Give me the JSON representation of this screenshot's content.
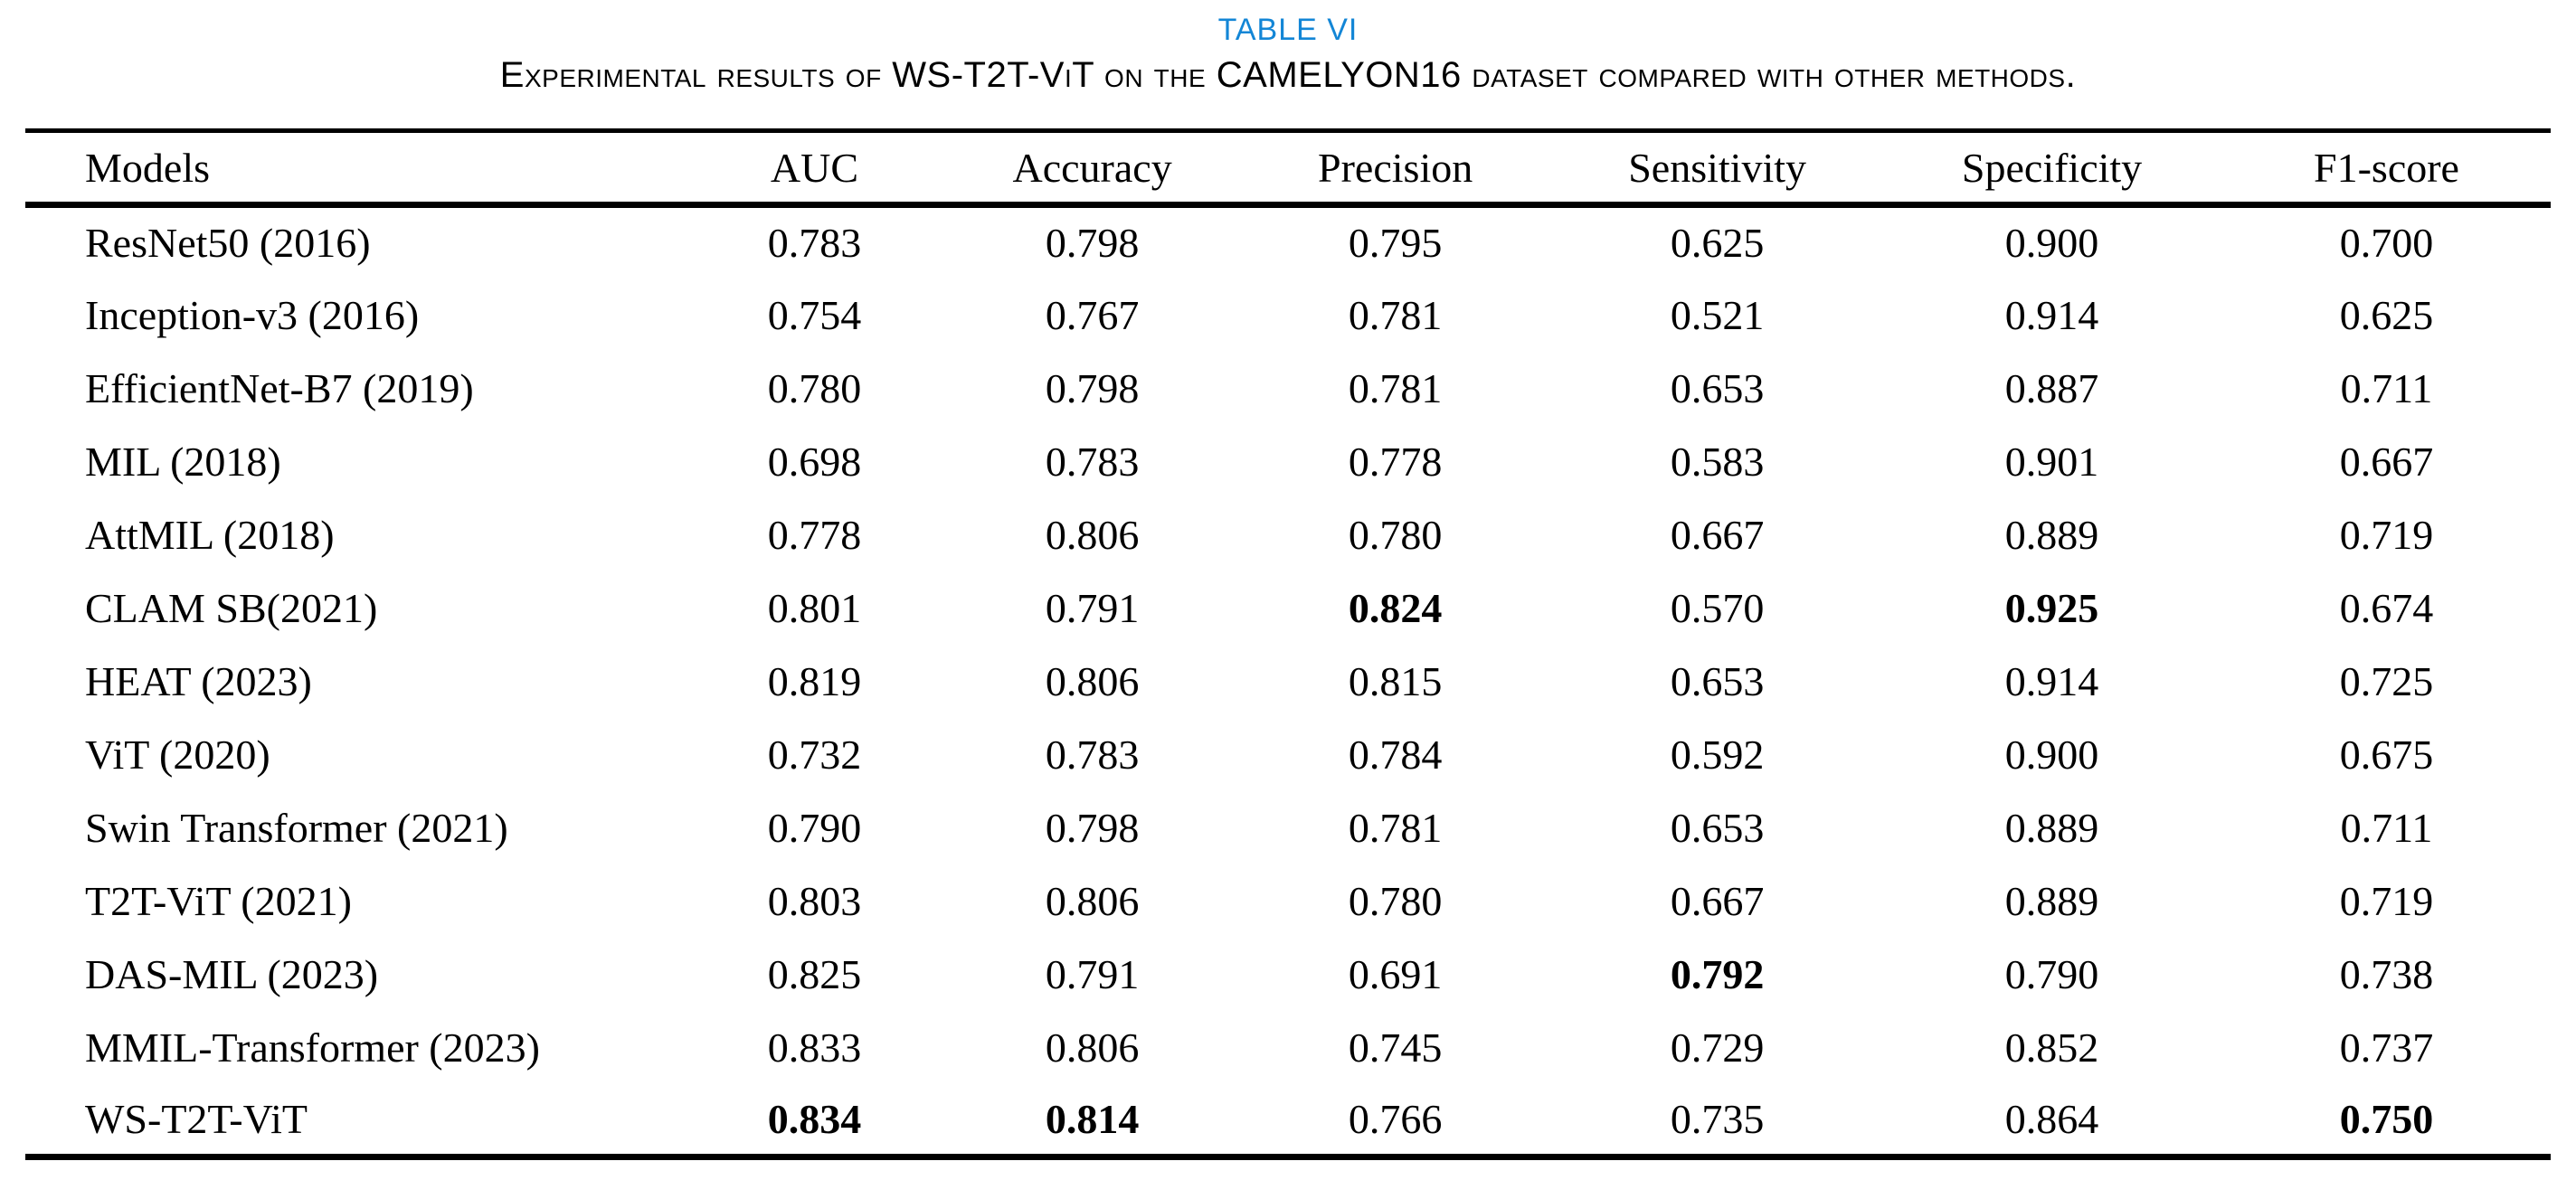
{
  "table_label": "TABLE VI",
  "caption": "Experimental results of WS-T2T-ViT on the CAMELYON16 dataset compared with other methods.",
  "colors": {
    "label_blue": "#1386d6",
    "text": "#000000",
    "background": "#ffffff"
  },
  "columns": [
    "Models",
    "AUC",
    "Accuracy",
    "Precision",
    "Sensitivity",
    "Specificity",
    "F1-score"
  ],
  "rows": [
    {
      "model": "ResNet50 (2016)",
      "values": [
        "0.783",
        "0.798",
        "0.795",
        "0.625",
        "0.900",
        "0.700"
      ],
      "bold": []
    },
    {
      "model": "Inception-v3 (2016)",
      "values": [
        "0.754",
        "0.767",
        "0.781",
        "0.521",
        "0.914",
        "0.625"
      ],
      "bold": []
    },
    {
      "model": "EfficientNet-B7 (2019)",
      "values": [
        "0.780",
        "0.798",
        "0.781",
        "0.653",
        "0.887",
        "0.711"
      ],
      "bold": []
    },
    {
      "model": "MIL (2018)",
      "values": [
        "0.698",
        "0.783",
        "0.778",
        "0.583",
        "0.901",
        "0.667"
      ],
      "bold": []
    },
    {
      "model": "AttMIL (2018)",
      "values": [
        "0.778",
        "0.806",
        "0.780",
        "0.667",
        "0.889",
        "0.719"
      ],
      "bold": []
    },
    {
      "model": "CLAM SB(2021)",
      "values": [
        "0.801",
        "0.791",
        "0.824",
        "0.570",
        "0.925",
        "0.674"
      ],
      "bold": [
        2,
        4
      ]
    },
    {
      "model": "HEAT (2023)",
      "values": [
        "0.819",
        "0.806",
        "0.815",
        "0.653",
        "0.914",
        "0.725"
      ],
      "bold": []
    },
    {
      "model": "ViT (2020)",
      "values": [
        "0.732",
        "0.783",
        "0.784",
        "0.592",
        "0.900",
        "0.675"
      ],
      "bold": []
    },
    {
      "model": "Swin Transformer (2021)",
      "values": [
        "0.790",
        "0.798",
        "0.781",
        "0.653",
        "0.889",
        "0.711"
      ],
      "bold": []
    },
    {
      "model": "T2T-ViT (2021)",
      "values": [
        "0.803",
        "0.806",
        "0.780",
        "0.667",
        "0.889",
        "0.719"
      ],
      "bold": []
    },
    {
      "model": "DAS-MIL (2023)",
      "values": [
        "0.825",
        "0.791",
        "0.691",
        "0.792",
        "0.790",
        "0.738"
      ],
      "bold": [
        3
      ]
    },
    {
      "model": "MMIL-Transformer (2023)",
      "values": [
        "0.833",
        "0.806",
        "0.745",
        "0.729",
        "0.852",
        "0.737"
      ],
      "bold": []
    },
    {
      "model": "WS-T2T-ViT",
      "values": [
        "0.834",
        "0.814",
        "0.766",
        "0.735",
        "0.864",
        "0.750"
      ],
      "bold": [
        0,
        1,
        5
      ]
    }
  ]
}
